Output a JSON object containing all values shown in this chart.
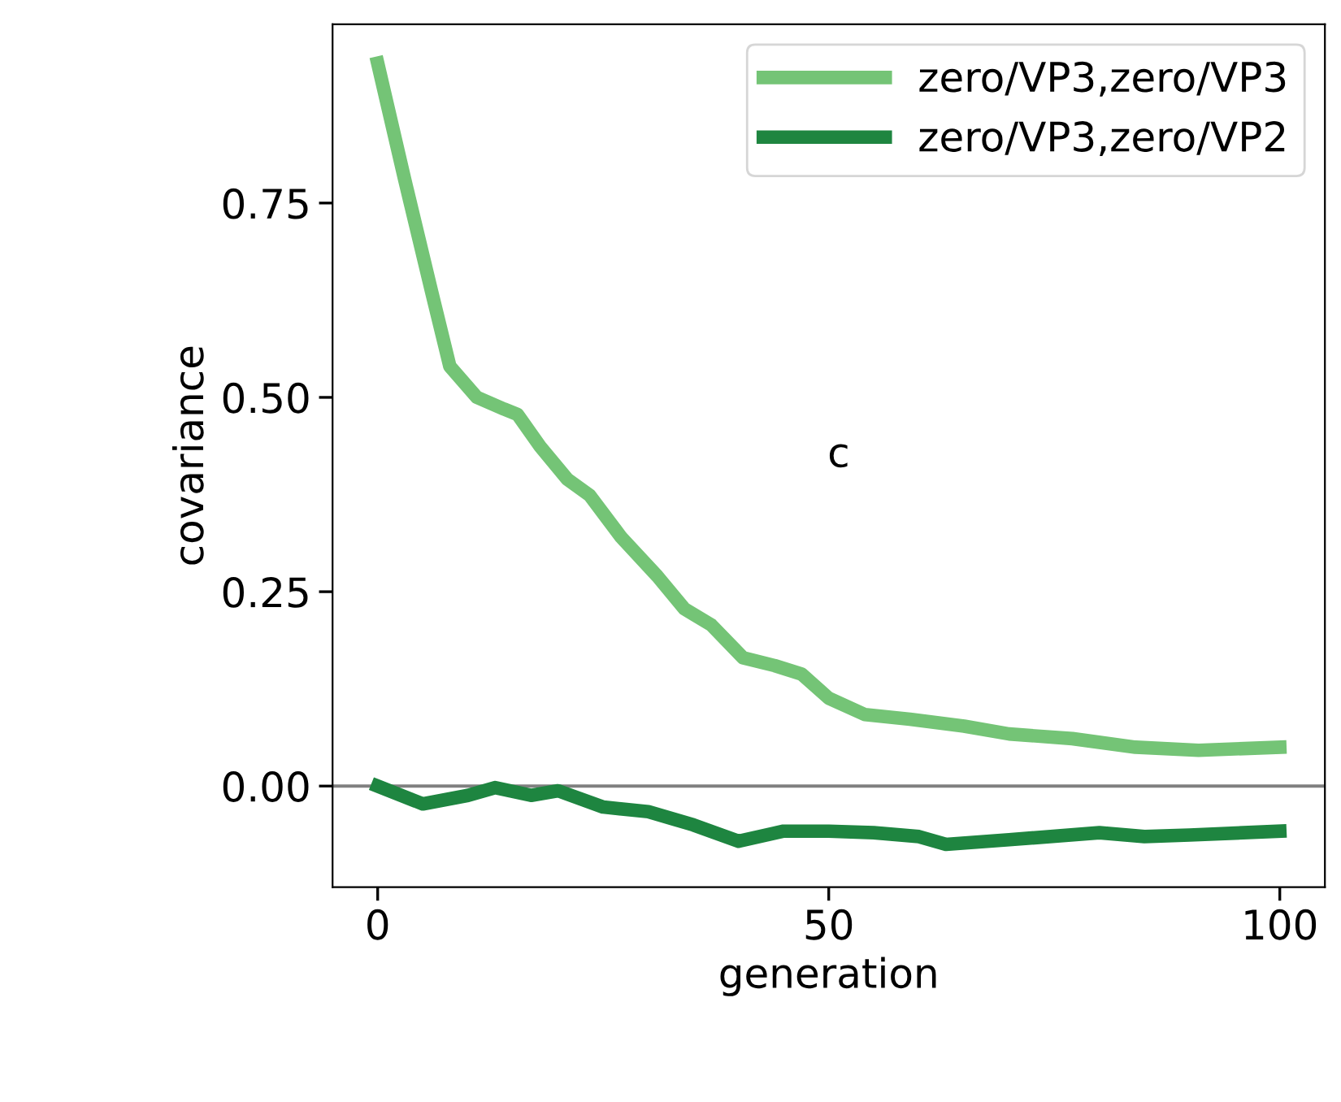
{
  "chart_data": {
    "type": "line",
    "xlabel": "generation",
    "ylabel": "covariance",
    "xlim": [
      -5,
      105
    ],
    "ylim": [
      -0.13,
      0.98
    ],
    "xticks": [
      0,
      50,
      100
    ],
    "yticks": [
      {
        "value": 0,
        "label": "0.00"
      },
      {
        "value": 0.25,
        "label": "0.25"
      },
      {
        "value": 0.5,
        "label": "0.50"
      },
      {
        "value": 0.75,
        "label": "0.75"
      }
    ],
    "grid": false,
    "legend": "top right",
    "marker": "none",
    "line_style": "solid",
    "annotations": [
      "c"
    ],
    "ref_lines": [
      {
        "axis": "y",
        "value": 0,
        "color": "#808080"
      }
    ],
    "series": [
      {
        "name": "zero/VP3,zero/VP3",
        "color": "#74c476",
        "x": [
          0,
          3,
          6,
          8,
          11,
          14,
          15.5,
          18,
          21,
          23.5,
          27,
          31,
          34,
          37,
          40.5,
          44,
          47,
          50,
          54,
          59,
          65,
          70,
          77,
          84,
          91,
          100
        ],
        "values": [
          0.93,
          0.78,
          0.635,
          0.54,
          0.5,
          0.485,
          0.478,
          0.437,
          0.395,
          0.374,
          0.32,
          0.27,
          0.228,
          0.207,
          0.165,
          0.155,
          0.144,
          0.113,
          0.092,
          0.086,
          0.077,
          0.067,
          0.061,
          0.05,
          0.046,
          0.05
        ]
      },
      {
        "name": "zero/VP3,zero/VP2",
        "color": "#1e8540",
        "x": [
          0,
          5,
          10,
          13,
          17,
          20,
          25,
          30,
          35,
          40,
          45,
          50,
          55,
          60,
          63,
          70,
          80,
          85,
          90,
          100
        ],
        "values": [
          0,
          -0.023,
          -0.012,
          -0.002,
          -0.012,
          -0.006,
          -0.027,
          -0.033,
          -0.05,
          -0.071,
          -0.058,
          -0.058,
          -0.06,
          -0.065,
          -0.075,
          -0.069,
          -0.06,
          -0.065,
          -0.063,
          -0.058
        ]
      }
    ]
  }
}
